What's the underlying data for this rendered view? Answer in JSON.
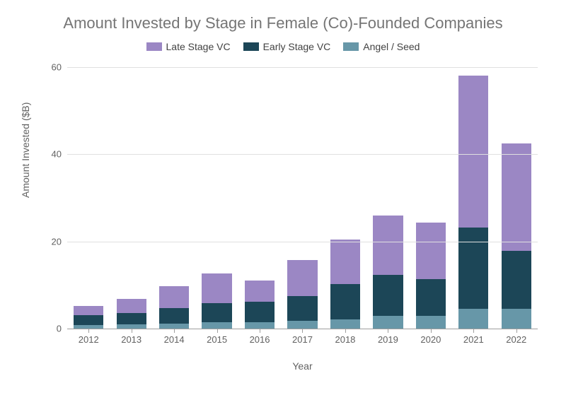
{
  "chart": {
    "type": "stacked-bar",
    "title": "Amount Invested by Stage in Female (Co)-Founded Companies",
    "title_fontsize": 22,
    "title_color": "#757575",
    "x_axis_title": "Year",
    "y_axis_title": "Amount Invested ($B)",
    "axis_title_fontsize": 14,
    "axis_title_color": "#616161",
    "tick_fontsize": 13,
    "tick_color": "#616161",
    "background_color": "#ffffff",
    "grid_color": "#e0e0e0",
    "baseline_color": "#9e9e9e",
    "ylim": [
      0,
      60
    ],
    "ytick_step": 20,
    "yticks": [
      0,
      20,
      40,
      60
    ],
    "bar_width_ratio": 0.7,
    "legend_position": "top-center",
    "legend_fontsize": 14,
    "legend_color": "#424242",
    "series": [
      {
        "key": "angel_seed",
        "label": "Angel / Seed",
        "color": "#6797a8"
      },
      {
        "key": "early_stage",
        "label": "Early Stage VC",
        "color": "#1c4657"
      },
      {
        "key": "late_stage",
        "label": "Late Stage VC",
        "color": "#9b87c4"
      }
    ],
    "legend_order": [
      "late_stage",
      "early_stage",
      "angel_seed"
    ],
    "categories": [
      "2012",
      "2013",
      "2014",
      "2015",
      "2016",
      "2017",
      "2018",
      "2019",
      "2020",
      "2021",
      "2022"
    ],
    "data": {
      "angel_seed": [
        0.8,
        0.9,
        1.1,
        1.4,
        1.4,
        1.8,
        2.1,
        3.0,
        3.0,
        4.6,
        4.6
      ],
      "early_stage": [
        2.3,
        2.6,
        3.6,
        4.4,
        4.7,
        5.6,
        8.1,
        9.4,
        8.4,
        18.6,
        13.2
      ],
      "late_stage": [
        2.1,
        3.3,
        5.1,
        6.8,
        4.9,
        8.4,
        10.2,
        13.5,
        12.9,
        34.8,
        24.7
      ]
    }
  }
}
